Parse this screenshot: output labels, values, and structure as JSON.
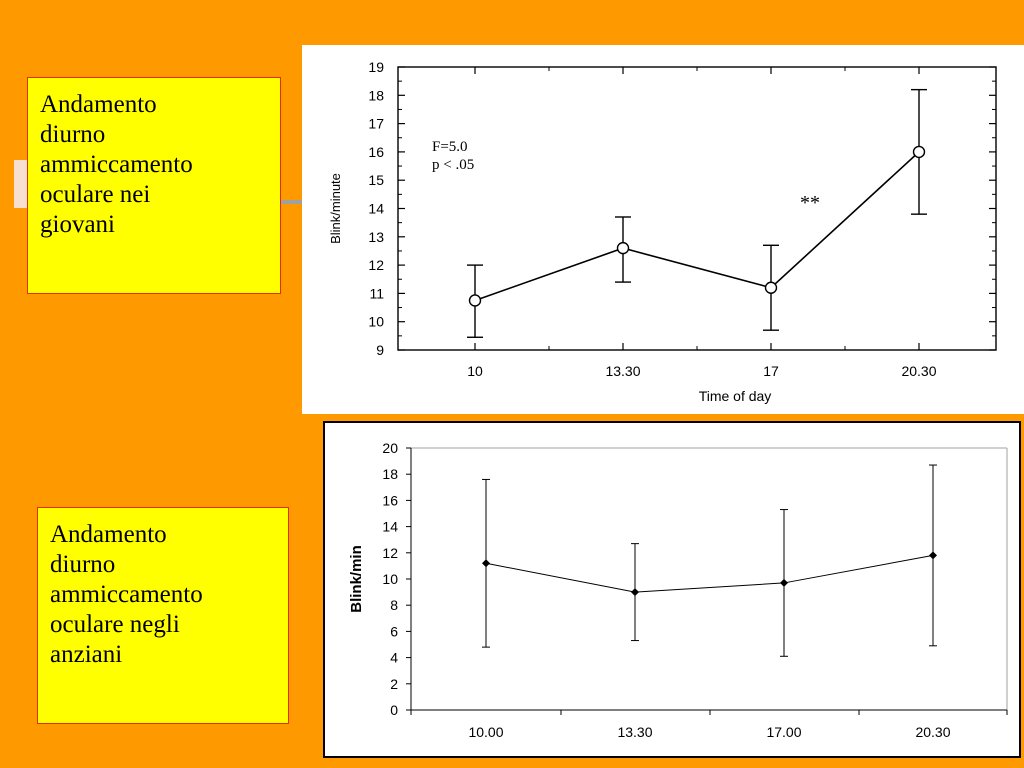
{
  "slide": {
    "background": "#FF9900",
    "callout_fill": "#FFFF00",
    "callout_border": "#E03000"
  },
  "callouts": [
    {
      "lines": [
        "Andamento",
        "diurno",
        "ammiccamento",
        "oculare nei",
        "giovani"
      ]
    },
    {
      "lines": [
        "Andamento",
        "diurno",
        "ammiccamento",
        "oculare negli",
        "anziani"
      ]
    }
  ],
  "chart_data": [
    {
      "type": "line",
      "categories": [
        "10",
        "13.30",
        "17",
        "20.30"
      ],
      "values": [
        10.75,
        12.6,
        11.2,
        16.0
      ],
      "error_low": [
        9.45,
        11.4,
        9.7,
        13.8
      ],
      "error_high": [
        12.0,
        13.7,
        12.7,
        18.2
      ],
      "xlabel": "Time of day",
      "ylabel": "Blink/minute",
      "ylim": [
        9,
        19
      ],
      "yticks": [
        9,
        10,
        11,
        12,
        13,
        14,
        15,
        16,
        17,
        18,
        19
      ],
      "annotations": [
        "F=5.0",
        "p < .05",
        "**"
      ],
      "marker": "open-circle",
      "grid": false
    },
    {
      "type": "line",
      "categories": [
        "10.00",
        "13.30",
        "17.00",
        "20.30"
      ],
      "values": [
        11.2,
        9.0,
        9.7,
        11.8
      ],
      "error_low": [
        4.8,
        5.3,
        4.1,
        4.9
      ],
      "error_high": [
        17.6,
        12.7,
        15.3,
        18.7
      ],
      "xlabel": "",
      "ylabel": "Blink/min",
      "ylim": [
        0,
        20
      ],
      "yticks": [
        0,
        2,
        4,
        6,
        8,
        10,
        12,
        14,
        16,
        18,
        20
      ],
      "marker": "filled-diamond",
      "grid": false
    }
  ]
}
